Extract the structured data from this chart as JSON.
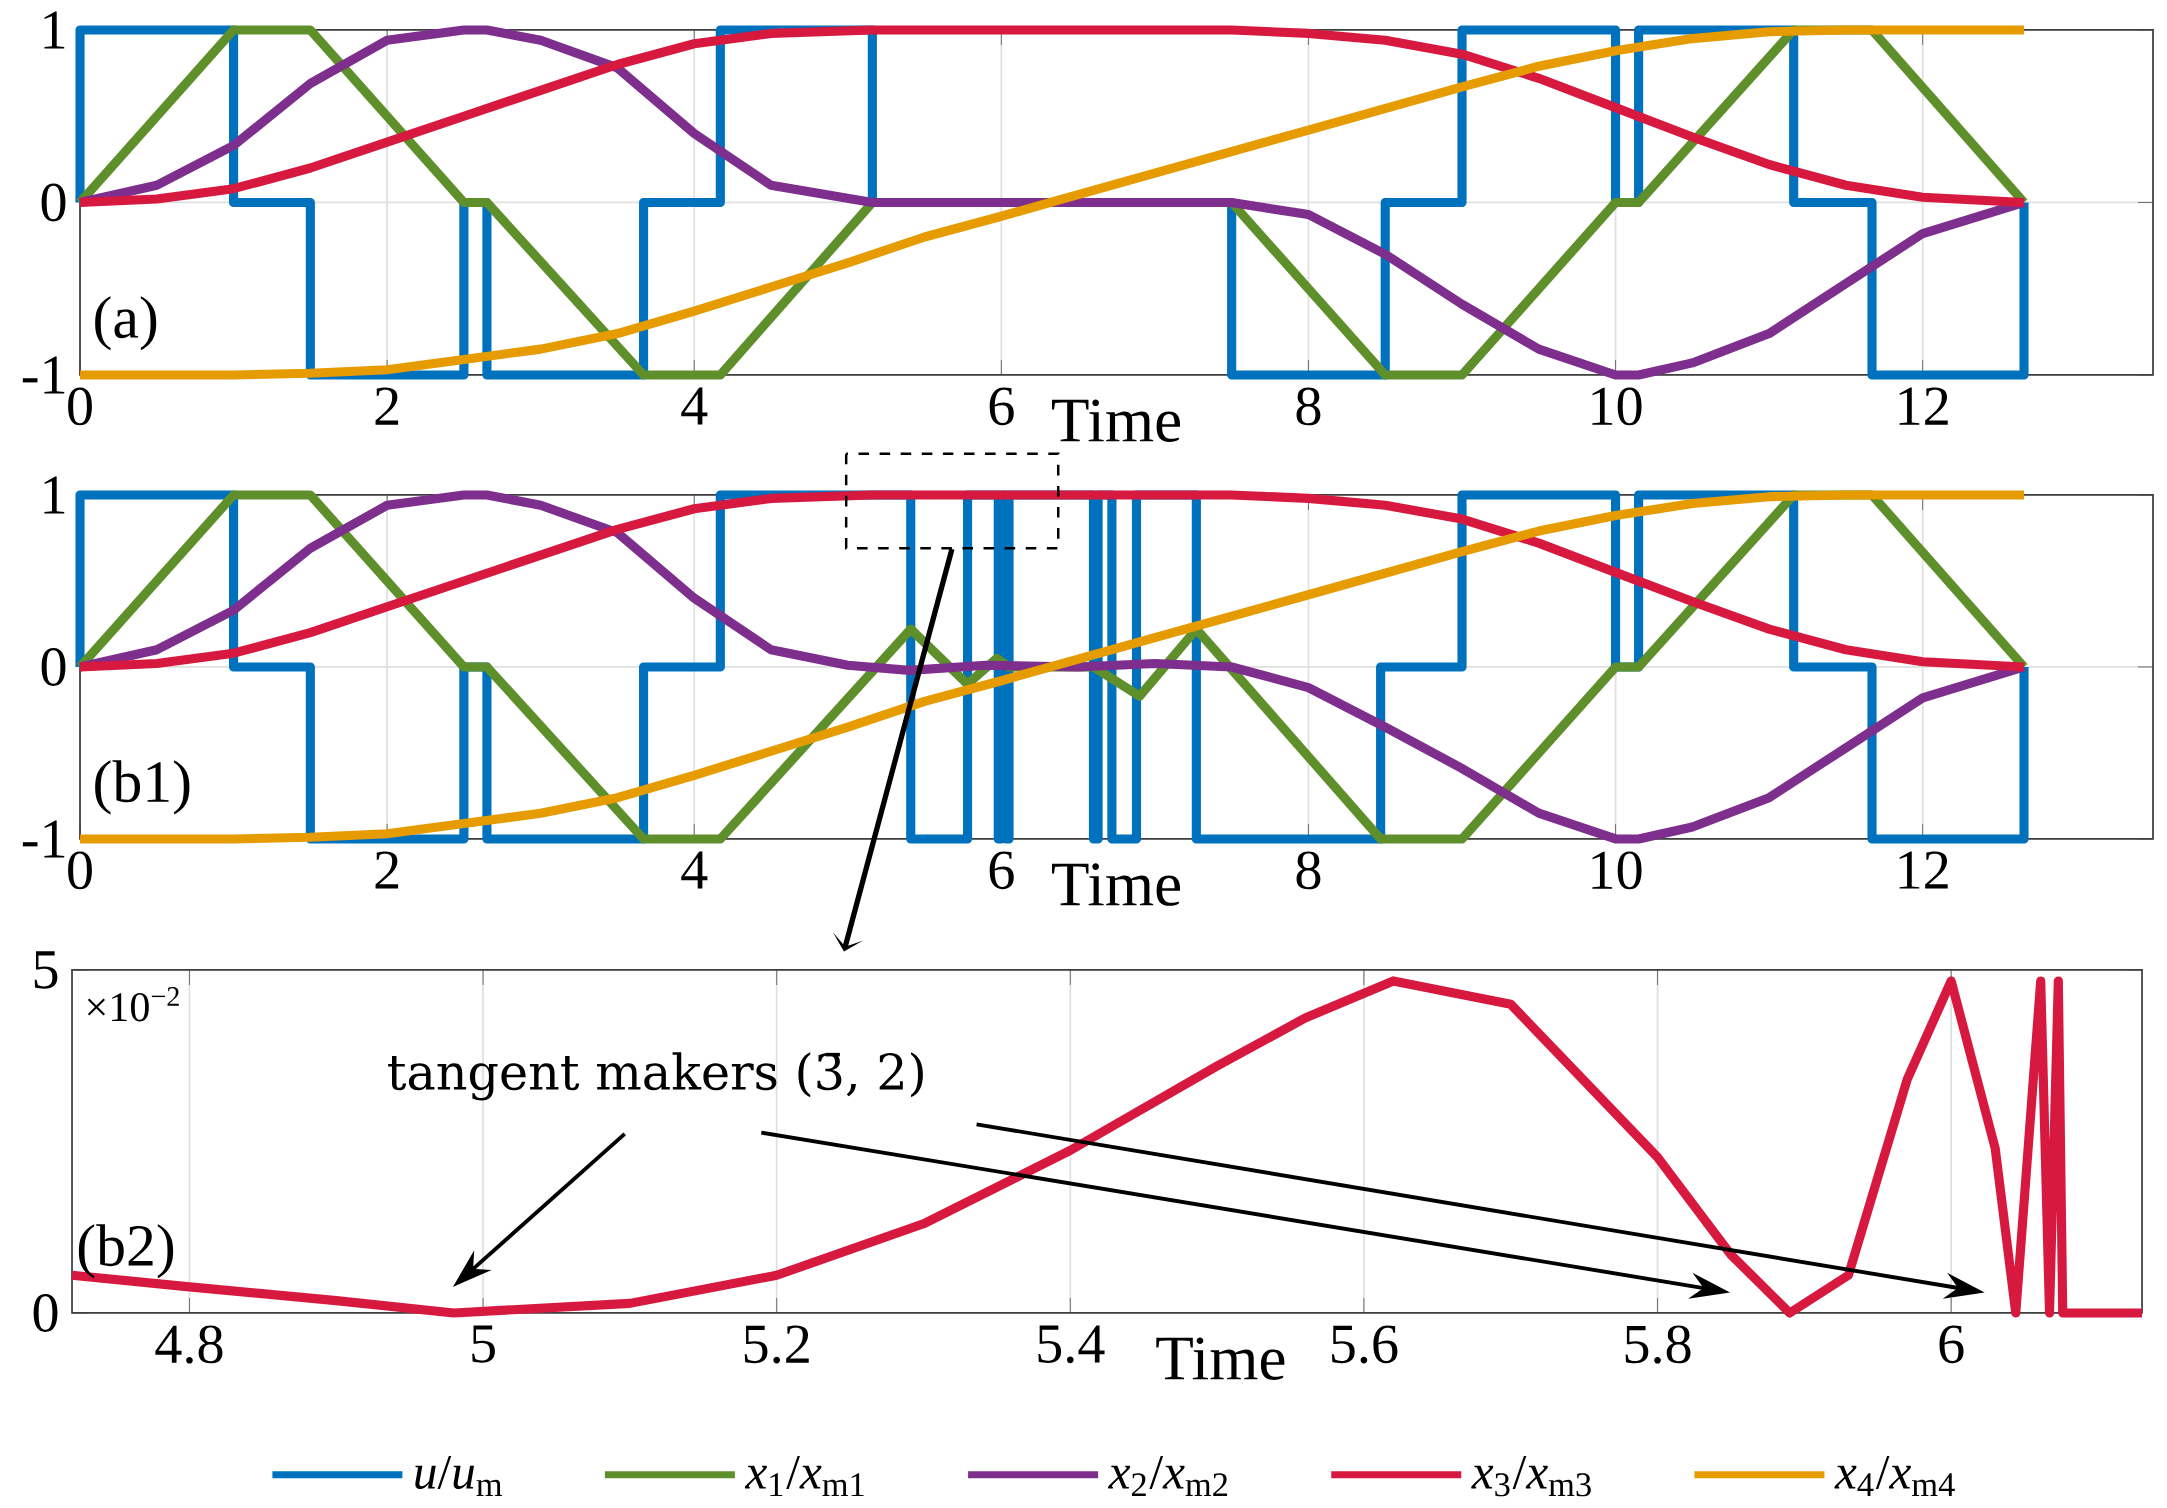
{
  "chart_data": [
    {
      "type": "line",
      "xlabel": "Time",
      "xlim": [
        0,
        13.5
      ],
      "ylim": [
        -1,
        1
      ],
      "xticks": [
        0,
        2,
        4,
        6,
        8,
        10,
        12
      ],
      "yticks": [
        -1,
        0,
        1
      ],
      "grid": true,
      "legend": "bottom",
      "annotations": [
        "(a)"
      ],
      "series": [
        {
          "name": "*u*/*u*$_{m}$",
          "type": "step",
          "color": "#0072bd",
          "x": [
            0,
            0,
            1.0,
            1.5,
            2.5,
            2.65,
            3.67,
            4.17,
            5.16,
            7.5,
            8.5,
            9.0,
            10.0,
            10.15,
            11.16,
            11.67,
            12.66
          ],
          "values": [
            0,
            1,
            0,
            -1,
            0,
            -1,
            0,
            1,
            0,
            -1,
            0,
            1,
            0,
            1,
            0,
            -1,
            0
          ]
        },
        {
          "name": "*x*$_{1}$/*x*$_{m1}$",
          "color": "#5f8f2a",
          "x": [
            0,
            1.0,
            1.5,
            2.5,
            2.65,
            3.67,
            4.17,
            5.16,
            7.5,
            8.5,
            9.0,
            10.0,
            10.15,
            11.16,
            11.67,
            12.66
          ],
          "values": [
            0,
            1,
            1,
            0,
            0,
            -1,
            -1,
            0,
            0,
            -1,
            -1,
            0,
            0,
            1,
            1,
            0
          ]
        },
        {
          "name": "*x*$_{2}$/*x*$_{m2}$",
          "color": "#7e2f8e",
          "x": [
            0,
            0.5,
            1,
            1.5,
            2,
            2.5,
            2.65,
            3,
            3.5,
            4,
            4.5,
            5.16,
            7.5,
            8,
            8.5,
            9,
            9.5,
            10,
            10.15,
            10.5,
            11,
            11.5,
            12,
            12.66
          ],
          "values": [
            0,
            0.1,
            0.33,
            0.69,
            0.94,
            1,
            1,
            0.94,
            0.78,
            0.4,
            0.1,
            0,
            0,
            -0.07,
            -0.3,
            -0.59,
            -0.85,
            -1,
            -1,
            -0.93,
            -0.76,
            -0.47,
            -0.18,
            0
          ]
        },
        {
          "name": "*x*$_{3}$/*x*$_{m3}$",
          "color": "#d7193f",
          "x": [
            0,
            0.5,
            1,
            1.5,
            2,
            2.5,
            3,
            3.5,
            4,
            4.5,
            5.16,
            7.5,
            8,
            8.5,
            9,
            9.5,
            10,
            10.5,
            11,
            11.5,
            12,
            12.66
          ],
          "values": [
            0,
            0.02,
            0.08,
            0.2,
            0.35,
            0.5,
            0.65,
            0.8,
            0.92,
            0.98,
            1,
            1,
            0.98,
            0.94,
            0.86,
            0.72,
            0.55,
            0.38,
            0.22,
            0.1,
            0.03,
            0
          ]
        },
        {
          "name": "*x*$_{4}$/*x*$_{m4}$",
          "color": "#e69b00",
          "x": [
            0,
            1,
            1.5,
            2,
            2.5,
            3,
            3.5,
            4,
            4.5,
            5,
            5.5,
            6,
            6.32,
            7,
            8,
            9,
            9.5,
            10,
            10.5,
            11,
            11.5,
            12,
            12.66
          ],
          "values": [
            -1,
            -1,
            -0.99,
            -0.97,
            -0.91,
            -0.85,
            -0.76,
            -0.63,
            -0.49,
            -0.35,
            -0.2,
            -0.08,
            0,
            0.17,
            0.42,
            0.67,
            0.79,
            0.88,
            0.95,
            0.99,
            1,
            1,
            1
          ]
        }
      ]
    },
    {
      "type": "line",
      "xlabel": "Time",
      "xlim": [
        0,
        13.5
      ],
      "ylim": [
        -1,
        1
      ],
      "xticks": [
        0,
        2,
        4,
        6,
        8,
        10,
        12
      ],
      "yticks": [
        -1,
        0,
        1
      ],
      "grid": true,
      "annotations": [
        "(b1)"
      ],
      "series": [
        {
          "type": "step",
          "color": "#0072bd",
          "x": [
            0,
            0,
            1.0,
            1.5,
            2.5,
            2.65,
            3.67,
            4.17,
            5.41,
            5.78,
            5.98,
            6.0,
            6.03,
            6.05,
            6.6,
            6.63,
            6.72,
            6.88,
            7.27,
            8.47,
            9.0,
            10.0,
            10.15,
            11.16,
            11.67,
            12.66
          ],
          "values": [
            0,
            1,
            0,
            -1,
            0,
            -1,
            0,
            1,
            -1,
            1,
            -1,
            1,
            -1,
            1,
            -1,
            1,
            -1,
            1,
            -1,
            0,
            1,
            0,
            1,
            0,
            -1,
            0
          ]
        },
        {
          "color": "#5f8f2a",
          "x": [
            0,
            1.0,
            1.5,
            2.5,
            2.65,
            3.67,
            4.17,
            5.41,
            5.78,
            5.97,
            6.05,
            6.6,
            6.9,
            7.27,
            8.47,
            9.0,
            10.0,
            10.15,
            11.16,
            11.67,
            12.66
          ],
          "values": [
            0,
            1,
            1,
            0,
            0,
            -1,
            -1,
            0.22,
            -0.1,
            0.05,
            0,
            0,
            -0.17,
            0.22,
            -1,
            -1,
            0,
            0,
            1,
            1,
            0
          ]
        },
        {
          "color": "#7e2f8e",
          "x": [
            0,
            0.5,
            1,
            1.5,
            2,
            2.5,
            2.65,
            3,
            3.5,
            4,
            4.5,
            5.0,
            5.4,
            5.9,
            6.5,
            7.0,
            7.5,
            8,
            8.5,
            9,
            9.5,
            10,
            10.15,
            10.5,
            11,
            11.5,
            12,
            12.66
          ],
          "values": [
            0,
            0.1,
            0.33,
            0.69,
            0.94,
            1,
            1,
            0.94,
            0.78,
            0.4,
            0.1,
            0.01,
            -0.02,
            0.01,
            0,
            0.02,
            0,
            -0.12,
            -0.35,
            -0.59,
            -0.85,
            -1,
            -1,
            -0.93,
            -0.76,
            -0.47,
            -0.18,
            0
          ]
        },
        {
          "color": "#d7193f",
          "x": [
            0,
            0.5,
            1,
            1.5,
            2,
            2.5,
            3,
            3.5,
            4,
            4.5,
            5.16,
            7.5,
            8,
            8.5,
            9,
            9.5,
            10,
            10.5,
            11,
            11.5,
            12,
            12.66
          ],
          "values": [
            0,
            0.02,
            0.08,
            0.2,
            0.35,
            0.5,
            0.65,
            0.8,
            0.92,
            0.98,
            1,
            1,
            0.98,
            0.94,
            0.86,
            0.72,
            0.55,
            0.38,
            0.22,
            0.1,
            0.03,
            0
          ]
        },
        {
          "color": "#e69b00",
          "x": [
            0,
            1,
            1.5,
            2,
            2.5,
            3,
            3.5,
            4,
            4.5,
            5,
            5.5,
            6,
            6.32,
            7,
            8,
            9,
            9.5,
            10,
            10.5,
            11,
            11.5,
            12,
            12.66
          ],
          "values": [
            -1,
            -1,
            -0.99,
            -0.97,
            -0.91,
            -0.85,
            -0.76,
            -0.63,
            -0.49,
            -0.35,
            -0.2,
            -0.08,
            0,
            0.17,
            0.42,
            0.67,
            0.79,
            0.88,
            0.95,
            0.99,
            1,
            1,
            1
          ]
        }
      ]
    },
    {
      "type": "line",
      "xlabel": "Time",
      "xlim": [
        4.72,
        6.13
      ],
      "ylim": [
        0,
        5
      ],
      "xticks": [
        4.8,
        5,
        5.2,
        5.4,
        5.6,
        5.8,
        6
      ],
      "yticks": [
        0,
        5
      ],
      "grid": true,
      "annotations": [
        "(b2)",
        "×10$^{−2}$",
        "tangent makers (3̄, 2)"
      ],
      "series": [
        {
          "color": "#d7193f",
          "x": [
            4.72,
            4.8,
            4.9,
            4.98,
            5.1,
            5.2,
            5.3,
            5.4,
            5.5,
            5.56,
            5.62,
            5.7,
            5.8,
            5.85,
            5.89,
            5.93,
            5.97,
            6.0,
            6.03,
            6.044,
            6.061,
            6.067,
            6.073,
            6.076,
            6.13
          ],
          "values": [
            0.55,
            0.38,
            0.18,
            0,
            0.14,
            0.55,
            1.3,
            2.37,
            3.6,
            4.3,
            4.84,
            4.5,
            2.27,
            0.85,
            0,
            0.55,
            3.4,
            4.84,
            2.4,
            0,
            4.84,
            0,
            4.84,
            0,
            0
          ]
        }
      ]
    }
  ]
}
